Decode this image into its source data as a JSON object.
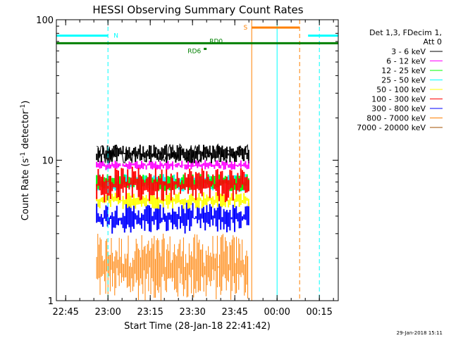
{
  "chart_data": {
    "type": "line",
    "title": "HESSI Observing Summary Count Rates",
    "xlabel": "Start Time (28-Jan-18 22:41:42)",
    "ylabel": "Count Rate (s^-1 detector^-1)",
    "ylabel_main": "Count Rate (s",
    "ylabel_exp1": "-1",
    "ylabel_mid": " detector",
    "ylabel_exp2": "-1",
    "ylabel_end": ")",
    "y_scale": "log",
    "ylim": [
      1,
      100
    ],
    "xlim": [
      "22:41:42",
      "00:21:42"
    ],
    "x_ticks": [
      "22:45",
      "23:00",
      "23:15",
      "23:30",
      "23:45",
      "00:00",
      "00:15"
    ],
    "y_ticks": [
      "1",
      "10",
      "100"
    ],
    "legend_header": [
      "Det 1,3, FDecim 1,",
      "Att 0"
    ],
    "legend_position": "right",
    "series": [
      {
        "name": "3 - 6 keV",
        "color": "#000000",
        "level": [
          9.5,
          13
        ]
      },
      {
        "name": "6 - 12 keV",
        "color": "#ff00ff",
        "level": [
          8.5,
          10
        ]
      },
      {
        "name": "12 - 25 keV",
        "color": "#00ff00",
        "level": [
          6,
          8
        ]
      },
      {
        "name": "25 - 50 keV",
        "color": "#00ffff",
        "level": [
          6,
          8
        ]
      },
      {
        "name": "50 - 100 keV",
        "color": "#ffff00",
        "level": [
          4.5,
          6
        ]
      },
      {
        "name": "100 - 300 keV",
        "color": "#ff0000",
        "level": [
          5,
          9
        ]
      },
      {
        "name": "300 - 800 keV",
        "color": "#0000ff",
        "level": [
          3,
          5
        ]
      },
      {
        "name": "800 - 7000 keV",
        "color": "#ff8000",
        "level": [
          1,
          3
        ]
      },
      {
        "name": "7000 - 20000 keV",
        "color": "#a05000",
        "level": [
          1,
          1
        ]
      }
    ],
    "data_interval": [
      "23:00",
      "23:50"
    ],
    "flags": [
      {
        "label": "N",
        "color": "#00ffff",
        "segments": [
          [
            "22:41:42",
            "23:00"
          ],
          [
            "00:11",
            "00:21:42"
          ]
        ],
        "level": 77
      },
      {
        "label": "S",
        "color": "#ff8000",
        "segments": [
          [
            "23:51",
            "00:08"
          ]
        ],
        "level": 88
      },
      {
        "label": "RD0",
        "color": "#008000",
        "segments": [
          [
            "22:41:42",
            "00:21:42"
          ]
        ],
        "level": 68
      },
      {
        "label": "RD6",
        "color": "#008000",
        "segments": [
          [
            "23:34",
            "23:35"
          ]
        ],
        "level": 62
      }
    ],
    "vertical_markers": [
      {
        "time": "22:41:42",
        "color": "#00ffff",
        "style": "solid"
      },
      {
        "time": "23:00",
        "color": "#00ffff",
        "style": "dashed"
      },
      {
        "time": "23:51",
        "color": "#ff8000",
        "style": "solid"
      },
      {
        "time": "00:00",
        "color": "#00ffff",
        "style": "solid"
      },
      {
        "time": "00:08",
        "color": "#ff8000",
        "style": "dashed"
      },
      {
        "time": "00:15",
        "color": "#00ffff",
        "style": "dashed"
      }
    ]
  },
  "footer_timestamp": "29-Jan-2018 15:11"
}
